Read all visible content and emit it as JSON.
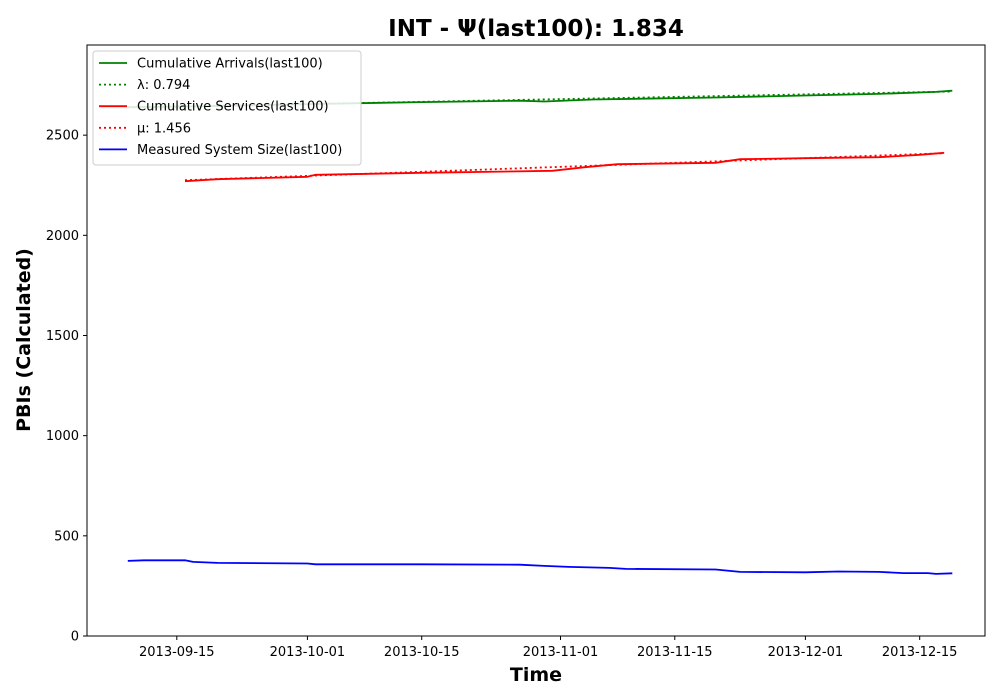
{
  "chart_data": {
    "type": "line",
    "title": "INT -  Ψ(last100): 1.834",
    "xlabel": "Time",
    "ylabel": "PBIs (Calculated)",
    "ylim": [
      0,
      2950
    ],
    "xlim": [
      "2013-09-04",
      "2013-12-23"
    ],
    "y_ticks": [
      0,
      500,
      1000,
      1500,
      2000,
      2500
    ],
    "x_ticks": [
      "2013-09-15",
      "2013-10-01",
      "2013-10-15",
      "2013-11-01",
      "2013-11-15",
      "2013-12-01",
      "2013-12-15"
    ],
    "grid": false,
    "legend_position": "top-left",
    "series": [
      {
        "name": "Cumulative Arrivals(last100)",
        "color": "#008000",
        "style": "solid",
        "points": [
          [
            "2013-09-09",
            2640
          ],
          [
            "2013-09-20",
            2645
          ],
          [
            "2013-10-01",
            2655
          ],
          [
            "2013-10-15",
            2665
          ],
          [
            "2013-10-27",
            2672
          ],
          [
            "2013-10-30",
            2668
          ],
          [
            "2013-11-05",
            2678
          ],
          [
            "2013-11-20",
            2688
          ],
          [
            "2013-12-01",
            2698
          ],
          [
            "2013-12-10",
            2706
          ],
          [
            "2013-12-17",
            2716
          ],
          [
            "2013-12-19",
            2722
          ]
        ]
      },
      {
        "name": "λ: 0.794",
        "color": "#008000",
        "style": "dotted",
        "points": [
          [
            "2013-09-09",
            2638
          ],
          [
            "2013-12-19",
            2718
          ]
        ]
      },
      {
        "name": "Cumulative Services(last100)",
        "color": "#ff0000",
        "style": "solid",
        "points": [
          [
            "2013-09-16",
            2270
          ],
          [
            "2013-09-20",
            2280
          ],
          [
            "2013-10-01",
            2292
          ],
          [
            "2013-10-02",
            2302
          ],
          [
            "2013-10-15",
            2312
          ],
          [
            "2013-10-31",
            2322
          ],
          [
            "2013-11-04",
            2340
          ],
          [
            "2013-11-08",
            2355
          ],
          [
            "2013-11-20",
            2362
          ],
          [
            "2013-11-23",
            2380
          ],
          [
            "2013-12-01",
            2385
          ],
          [
            "2013-12-10",
            2390
          ],
          [
            "2013-12-15",
            2402
          ],
          [
            "2013-12-18",
            2412
          ]
        ]
      },
      {
        "name": "μ: 1.456",
        "color": "#ff0000",
        "style": "dotted",
        "points": [
          [
            "2013-09-16",
            2275
          ],
          [
            "2013-12-18",
            2410
          ]
        ]
      },
      {
        "name": "Measured System Size(last100)",
        "color": "#0000ff",
        "style": "solid",
        "points": [
          [
            "2013-09-09",
            375
          ],
          [
            "2013-09-11",
            378
          ],
          [
            "2013-09-16",
            378
          ],
          [
            "2013-09-17",
            370
          ],
          [
            "2013-09-20",
            365
          ],
          [
            "2013-10-01",
            362
          ],
          [
            "2013-10-02",
            358
          ],
          [
            "2013-10-15",
            358
          ],
          [
            "2013-10-27",
            356
          ],
          [
            "2013-10-30",
            350
          ],
          [
            "2013-11-02",
            345
          ],
          [
            "2013-11-07",
            340
          ],
          [
            "2013-11-09",
            335
          ],
          [
            "2013-11-20",
            332
          ],
          [
            "2013-11-23",
            320
          ],
          [
            "2013-12-01",
            318
          ],
          [
            "2013-12-05",
            322
          ],
          [
            "2013-12-10",
            320
          ],
          [
            "2013-12-13",
            314
          ],
          [
            "2013-12-16",
            314
          ],
          [
            "2013-12-17",
            310
          ],
          [
            "2013-12-19",
            313
          ]
        ]
      }
    ]
  }
}
